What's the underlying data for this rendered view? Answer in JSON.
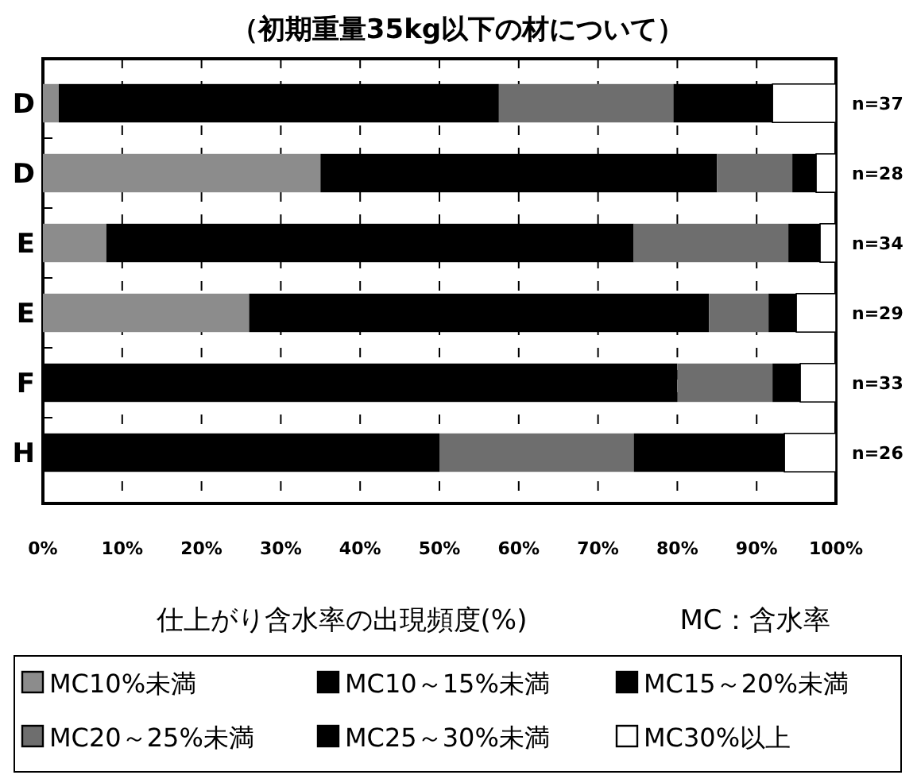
{
  "chart_data": {
    "type": "bar",
    "orientation": "horizontal",
    "stacked": true,
    "title": "（初期重量35kg以下の材について）",
    "xlabel": "仕上がり含水率の出現頻度(%)",
    "categories": [
      "D",
      "D",
      "E",
      "E",
      "F",
      "H"
    ],
    "series": [
      {
        "name": "MC10%未満",
        "color": "#8c8c8c",
        "values": [
          2,
          35,
          8,
          26,
          0,
          0
        ]
      },
      {
        "name": "MC10～15%未満",
        "color": "#000000",
        "values": [
          55.5,
          50,
          66.5,
          58,
          80,
          50
        ]
      },
      {
        "name": "MC15～20%未満",
        "color": "#000000",
        "values": [
          null,
          null,
          null,
          null,
          null,
          null
        ]
      },
      {
        "name": "MC20～25%未満",
        "color": "#6e6e6e",
        "values": [
          22,
          9.5,
          19.5,
          7.5,
          12,
          24.5
        ]
      },
      {
        "name": "MC25～30%未満",
        "color": "#000000",
        "values": [
          12.5,
          3,
          4,
          3.5,
          3.5,
          19
        ]
      },
      {
        "name": "MC30%以上",
        "color": "#ffffff",
        "values": [
          8,
          2.5,
          2,
          5,
          4.5,
          6.5
        ]
      }
    ],
    "xlim": [
      0,
      100
    ],
    "xticks": [
      {
        "value": 0,
        "label": "0%"
      },
      {
        "value": 10,
        "label": "10%"
      },
      {
        "value": 20,
        "label": "20%"
      },
      {
        "value": 30,
        "label": "30%"
      },
      {
        "value": 40,
        "label": "40%"
      },
      {
        "value": 50,
        "label": "50%"
      },
      {
        "value": 60,
        "label": "60%"
      },
      {
        "value": 70,
        "label": "70%"
      },
      {
        "value": 80,
        "label": "80%"
      },
      {
        "value": 90,
        "label": "90%"
      },
      {
        "value": 100,
        "label": "100%"
      }
    ],
    "grid": "x",
    "legend": "bottom",
    "annotations": [
      "n=37",
      "n=28",
      "n=34",
      "n=29",
      "n=33",
      "n=26",
      "MC：含水率"
    ]
  }
}
